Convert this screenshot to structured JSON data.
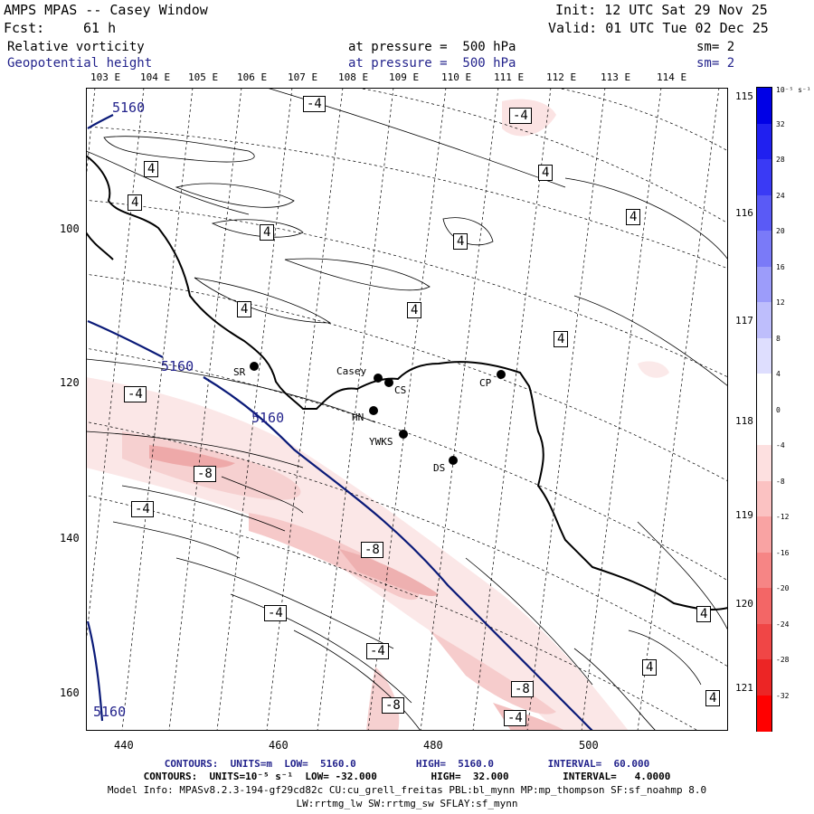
{
  "header": {
    "title": "AMPS MPAS -- Casey Window",
    "fcst_label": "Fcst:",
    "fcst_value": "61 h",
    "init": "Init: 12 UTC Sat 29 Nov 25",
    "valid": "Valid: 01 UTC Tue 02 Dec 25",
    "field1": "Relative vorticity",
    "field1_level": "at pressure =  500 hPa",
    "field1_sm": "sm= 2",
    "field2": "Geopotential height",
    "field2_level": "at pressure =  500 hPa",
    "field2_sm": "sm= 2"
  },
  "map": {
    "top_lon_labels": [
      "103 E",
      "104 E",
      "105 E",
      "106 E",
      "107 E",
      "108 E",
      "109 E",
      "110 E",
      "111 E",
      "112 E",
      "113 E",
      "114 E"
    ],
    "right_lon_labels": [
      "115 E",
      "116 E",
      "117 E",
      "118 E",
      "119 E",
      "120 E",
      "121 E"
    ],
    "y_ticks": [
      "100",
      "120",
      "140",
      "160"
    ],
    "x_ticks": [
      "440",
      "460",
      "480",
      "500"
    ],
    "stations": [
      {
        "name": "SR"
      },
      {
        "name": "Casey"
      },
      {
        "name": "CS"
      },
      {
        "name": "HN"
      },
      {
        "name": "YWKS"
      },
      {
        "name": "DS"
      },
      {
        "name": "CP"
      }
    ],
    "height_labels": [
      "5160",
      "5160",
      "5160",
      "5160"
    ],
    "vort_labels": [
      "-4",
      "-4",
      "4",
      "4",
      "4",
      "4",
      "4",
      "4",
      "4",
      "4",
      "-4",
      "-8",
      "-4",
      "-8",
      "-4",
      "-4",
      "-8",
      "-8",
      "-4",
      "4",
      "4",
      "4",
      "4"
    ],
    "colors": {
      "height_contour": "#0a1a78",
      "pos_fill": "#f6d6d6",
      "pos_fill_strong": "#efb1b1",
      "coast": "#000000"
    }
  },
  "colorbar": {
    "unit": "10⁻⁵ s⁻¹",
    "labels": [
      "32",
      "28",
      "24",
      "20",
      "16",
      "12",
      "8",
      "4",
      "0",
      "-4",
      "-8",
      "-12",
      "-16",
      "-20",
      "-24",
      "-28",
      "-32"
    ],
    "colors": [
      "#0000e6",
      "#2020f0",
      "#3a3af5",
      "#5a5af6",
      "#7a7af8",
      "#9c9cfa",
      "#bebefc",
      "#dedefe",
      "#ffffff",
      "#ffffff",
      "#fde0e0",
      "#fbc2c2",
      "#f9a3a3",
      "#f68585",
      "#f36666",
      "#f04646",
      "#ec2525",
      "#ff0000"
    ]
  },
  "footer": {
    "line1": "CONTOURS:  UNITS=m  LOW=  5160.0          HIGH=  5160.0         INTERVAL=  60.000",
    "line2": "CONTOURS:  UNITS=10⁻⁵ s⁻¹  LOW= -32.000         HIGH=  32.000         INTERVAL=   4.0000",
    "line3": "Model Info: MPASv8.2.3-194-gf29cd82c CU:cu_grell_freitas PBL:bl_mynn MP:mp_thompson SF:sf_noahmp 8.0",
    "line4": "LW:rrtmg_lw SW:rrtmg_sw SFLAY:sf_mynn"
  }
}
